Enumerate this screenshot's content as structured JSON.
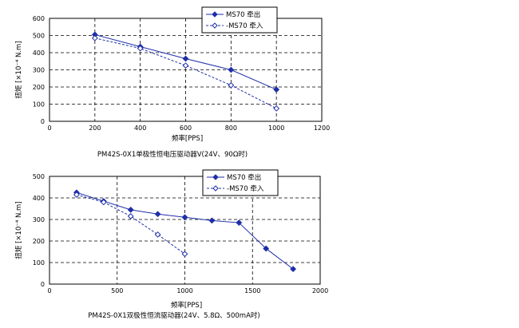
{
  "chart_data": [
    {
      "type": "line",
      "caption": "PM42S-0X1单极性恒电压驱动器V(24V、90Ω时)",
      "xlabel": "频率[PPS]",
      "ylabel": "扭矩 [×10⁻⁴ N.m]",
      "xlim": [
        0,
        1200
      ],
      "ylim": [
        0,
        600
      ],
      "xticks": [
        0,
        200,
        400,
        600,
        800,
        1000,
        1200
      ],
      "yticks": [
        0,
        100,
        200,
        300,
        400,
        500,
        600
      ],
      "grid": true,
      "legend_position": "top-right",
      "series": [
        {
          "name": "MS70 牵出",
          "style": "solid",
          "marker": "filled-diamond",
          "color": "#1f2fa8",
          "x": [
            200,
            400,
            600,
            800,
            1000
          ],
          "y": [
            505,
            435,
            365,
            300,
            185
          ]
        },
        {
          "name": "-MS70 牵入",
          "style": "dashed",
          "marker": "open-diamond",
          "color": "#1f2fa8",
          "x": [
            200,
            400,
            600,
            800,
            1000
          ],
          "y": [
            485,
            425,
            325,
            210,
            75
          ]
        }
      ]
    },
    {
      "type": "line",
      "caption": "PM42S-0X1双极性恒流驱动器(24V、5.8Ω、500mA时)",
      "xlabel": "频率[PPS]",
      "ylabel": "扭矩 [×10⁻⁴ N.m]",
      "xlim": [
        0,
        2000
      ],
      "ylim": [
        0,
        500
      ],
      "xticks": [
        0,
        500,
        1000,
        1500,
        2000
      ],
      "yticks": [
        0,
        100,
        200,
        300,
        400,
        500
      ],
      "grid": true,
      "legend_position": "top-right",
      "series": [
        {
          "name": "MS70 牵出",
          "style": "solid",
          "marker": "filled-diamond",
          "color": "#1f2fa8",
          "x": [
            200,
            400,
            600,
            800,
            1000,
            1200,
            1400,
            1600,
            1800
          ],
          "y": [
            425,
            385,
            345,
            325,
            310,
            295,
            285,
            165,
            70
          ]
        },
        {
          "name": "-MS70 牵入",
          "style": "dashed",
          "marker": "open-diamond",
          "color": "#1f2fa8",
          "x": [
            200,
            400,
            600,
            800,
            1000
          ],
          "y": [
            415,
            380,
            315,
            230,
            140
          ]
        }
      ]
    }
  ]
}
